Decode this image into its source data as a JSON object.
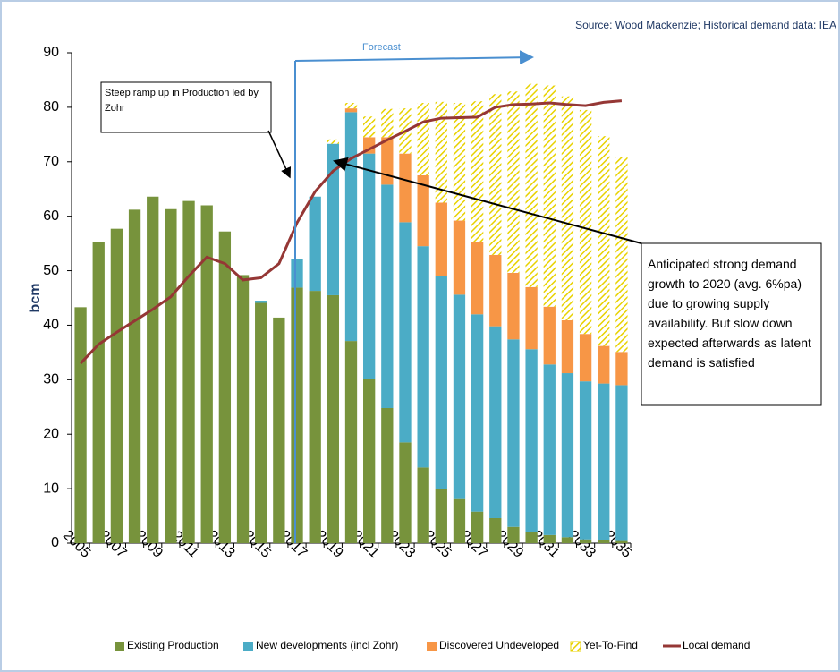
{
  "chart_data": {
    "type": "bar",
    "stacked": true,
    "source": "Source: Wood Mackenzie; Historical demand data: IEA",
    "ylabel": "bcm",
    "forecast_label": "Forecast",
    "annotations": [
      "Steep ramp up in Production led by Zohr",
      "Anticipated strong demand growth to 2020 (avg. 6%pa) due to growing supply availability. But slow down expected afterwards as latent demand is satisfied"
    ],
    "categories": [
      "2005",
      null,
      "2007",
      null,
      "2009",
      null,
      "2011",
      null,
      "2013",
      null,
      "2015",
      null,
      "2017",
      null,
      "2019",
      null,
      "2021",
      null,
      "2023",
      null,
      "2025",
      null,
      "2027",
      null,
      "2029",
      null,
      "2031",
      null,
      "2033",
      null,
      "2035"
    ],
    "ylim": [
      0,
      90
    ],
    "yticks": [
      0,
      10,
      20,
      30,
      40,
      50,
      60,
      70,
      80,
      90
    ],
    "series": [
      {
        "name": "Existing Production",
        "color": "#77933c",
        "values": [
          43.3,
          55.3,
          57.7,
          61.2,
          63.6,
          61.3,
          62.8,
          62.0,
          57.2,
          49.2,
          44.1,
          41.4,
          46.9,
          46.3,
          45.5,
          37.1,
          30.1,
          24.8,
          18.5,
          13.9,
          9.9,
          8.1,
          5.8,
          4.6,
          3.0,
          2.0,
          1.5,
          1.1,
          0.7,
          0.5,
          0.4
        ]
      },
      {
        "name": "New developments (incl Zohr)",
        "color": "#4bacc6",
        "values": [
          0,
          0,
          0,
          0,
          0,
          0,
          0,
          0,
          0,
          0,
          0.4,
          0,
          5.2,
          17.3,
          27.8,
          42.0,
          41.4,
          41.0,
          40.4,
          40.6,
          39.1,
          37.5,
          36.2,
          35.2,
          34.4,
          33.6,
          31.3,
          30.1,
          29.0,
          28.8,
          28.6
        ]
      },
      {
        "name": "Discovered Undeveloped",
        "color": "#f79646",
        "values": [
          0,
          0,
          0,
          0,
          0,
          0,
          0,
          0,
          0,
          0,
          0,
          0,
          0,
          0,
          0,
          0.7,
          3.0,
          8.7,
          12.6,
          13.0,
          13.5,
          13.6,
          13.3,
          13.1,
          12.2,
          11.4,
          10.6,
          9.7,
          8.7,
          6.9,
          6.1
        ]
      },
      {
        "name": "Yet-To-Find",
        "color": "#e8d200",
        "hatch": true,
        "values": [
          0,
          0,
          0,
          0,
          0,
          0,
          0,
          0,
          0,
          0,
          0,
          0,
          0,
          0,
          0.8,
          1.0,
          3.8,
          5.2,
          8.3,
          13.3,
          18.5,
          21.6,
          25.8,
          29.5,
          33.3,
          37.3,
          40.6,
          41.1,
          41.1,
          38.5,
          35.7
        ]
      },
      {
        "name": "Local demand",
        "type": "line",
        "color": "#953735",
        "values": [
          33.0,
          36.5,
          38.7,
          40.8,
          42.9,
          45.2,
          49.0,
          52.5,
          51.3,
          48.3,
          48.7,
          51.3,
          58.8,
          64.5,
          68.3,
          70.6,
          72.3,
          74.0,
          75.6,
          77.3,
          78.0,
          78.1,
          78.2,
          80.0,
          80.5,
          80.6,
          80.8,
          80.5,
          80.3,
          80.9,
          81.2
        ]
      }
    ]
  }
}
